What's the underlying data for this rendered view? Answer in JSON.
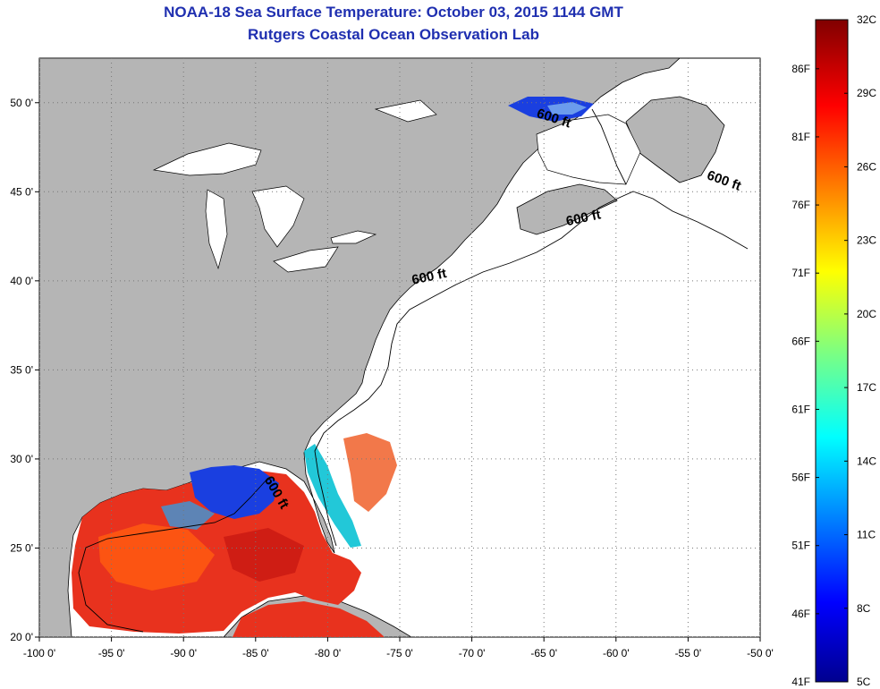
{
  "header": {
    "title": "NOAA-18 Sea Surface Temperature:  October 03, 2015 1144 GMT",
    "subtitle": "Rutgers Coastal Ocean Observation Lab"
  },
  "map": {
    "lon_range": [
      -100,
      -50
    ],
    "lat_range": [
      20,
      52.5
    ],
    "lon_ticks": [
      {
        "value": -100,
        "label": "-100 0'"
      },
      {
        "value": -95,
        "label": "-95 0'"
      },
      {
        "value": -90,
        "label": "-90 0'"
      },
      {
        "value": -85,
        "label": "-85 0'"
      },
      {
        "value": -80,
        "label": "-80 0'"
      },
      {
        "value": -75,
        "label": "-75 0'"
      },
      {
        "value": -70,
        "label": "-70 0'"
      },
      {
        "value": -65,
        "label": "-65 0'"
      },
      {
        "value": -60,
        "label": "-60 0'"
      },
      {
        "value": -55,
        "label": "-55 0'"
      },
      {
        "value": -50,
        "label": "-50 0'"
      }
    ],
    "lat_ticks": [
      {
        "value": 20,
        "label": "20 0'"
      },
      {
        "value": 25,
        "label": "25 0'"
      },
      {
        "value": 30,
        "label": "30 0'"
      },
      {
        "value": 35,
        "label": "35 0'"
      },
      {
        "value": 40,
        "label": "40 0'"
      },
      {
        "value": 45,
        "label": "45 0'"
      },
      {
        "value": 50,
        "label": "50 0'"
      }
    ],
    "grid": true,
    "contour_labels": [
      {
        "text": "600 ft",
        "lon": -64.4,
        "lat": 48.9
      },
      {
        "text": "600 ft",
        "lon": -52.6,
        "lat": 45.4
      },
      {
        "text": "600 ft",
        "lon": -62.2,
        "lat": 43.3
      },
      {
        "text": "600 ft",
        "lon": -72.9,
        "lat": 40.0
      },
      {
        "text": "600 ft",
        "lon": -83.8,
        "lat": 28.0
      }
    ],
    "colors": {
      "land": "#b5b5b5",
      "ocean": "#ffffff",
      "grid": "#777777",
      "title": "#1f2fb0"
    }
  },
  "colorbar": {
    "min_c": 5,
    "max_c": 32,
    "celsius_labels": [
      {
        "value": 32,
        "label": "32C"
      },
      {
        "value": 29,
        "label": "29C"
      },
      {
        "value": 26,
        "label": "26C"
      },
      {
        "value": 23,
        "label": "23C"
      },
      {
        "value": 20,
        "label": "20C"
      },
      {
        "value": 17,
        "label": "17C"
      },
      {
        "value": 14,
        "label": "14C"
      },
      {
        "value": 11,
        "label": "11C"
      },
      {
        "value": 8,
        "label": "8C"
      },
      {
        "value": 5,
        "label": "5C"
      }
    ],
    "fahrenheit_labels": [
      {
        "value": 86,
        "label": "86F"
      },
      {
        "value": 81,
        "label": "81F"
      },
      {
        "value": 76,
        "label": "76F"
      },
      {
        "value": 71,
        "label": "71F"
      },
      {
        "value": 66,
        "label": "66F"
      },
      {
        "value": 61,
        "label": "61F"
      },
      {
        "value": 56,
        "label": "56F"
      },
      {
        "value": 51,
        "label": "51F"
      },
      {
        "value": 46,
        "label": "46F"
      },
      {
        "value": 41,
        "label": "41F"
      }
    ]
  }
}
